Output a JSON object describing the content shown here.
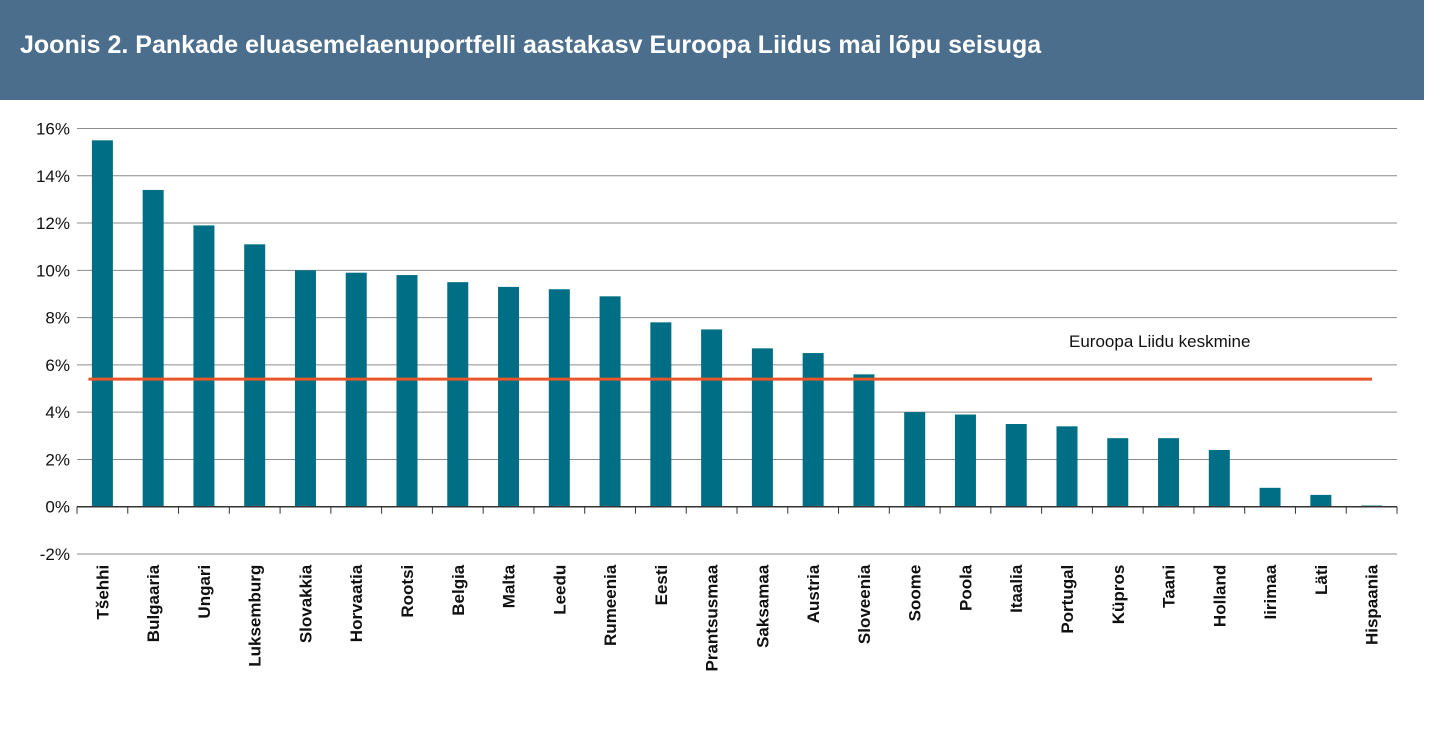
{
  "header": {
    "title": "Joonis 2. Pankade eluasemelaenuportfelli aastakasv Euroopa Liidus mai lõpu seisuga"
  },
  "colors": {
    "header_bg": "#4b6e8c",
    "bar": "#006e84",
    "average_line": "#e8562a",
    "grid": "#8c8c8c"
  },
  "chart_data": {
    "type": "bar",
    "title": "Joonis 2. Pankade eluasemelaenuportfelli aastakasv Euroopa Liidus mai lõpu seisuga",
    "xlabel": "",
    "ylabel": "",
    "ylim": [
      -2,
      16
    ],
    "y_ticks": [
      -2,
      0,
      2,
      4,
      6,
      8,
      10,
      12,
      14,
      16
    ],
    "y_tick_labels": [
      "-2%",
      "0%",
      "2%",
      "4%",
      "6%",
      "8%",
      "10%",
      "12%",
      "14%",
      "16%"
    ],
    "grid": true,
    "categories": [
      "Tšehhi",
      "Bulgaaria",
      "Ungari",
      "Luksemburg",
      "Slovakkia",
      "Horvaatia",
      "Rootsi",
      "Belgia",
      "Malta",
      "Leedu",
      "Rumeenia",
      "Eesti",
      "Prantsusmaa",
      "Saksamaa",
      "Austria",
      "Sloveenia",
      "Soome",
      "Poola",
      "Itaalia",
      "Portugal",
      "Küpros",
      "Taani",
      "Holland",
      "Iirimaa",
      "Läti",
      "Hispaania"
    ],
    "values": [
      15.5,
      13.4,
      11.9,
      11.1,
      10.0,
      9.9,
      9.8,
      9.5,
      9.3,
      9.2,
      8.9,
      7.8,
      7.5,
      6.7,
      6.5,
      5.6,
      4.0,
      3.9,
      3.5,
      3.4,
      2.9,
      2.9,
      2.4,
      0.8,
      0.5,
      0.05
    ],
    "reference_line": {
      "value": 5.4,
      "label": "Euroopa Liidu keskmine"
    }
  }
}
